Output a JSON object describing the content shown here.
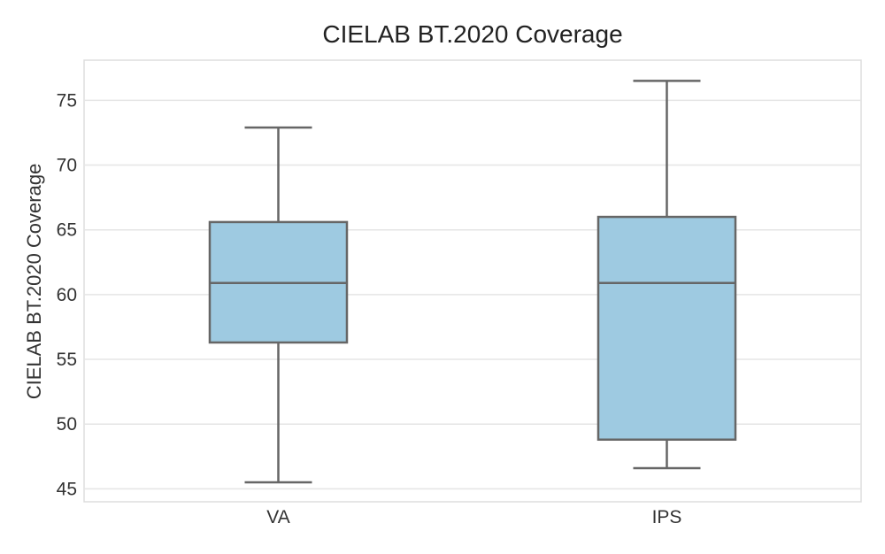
{
  "chart_data": {
    "type": "box",
    "title": "CIELAB BT.2020 Coverage",
    "xlabel": "",
    "ylabel": "CIELAB BT.2020 Coverage",
    "ylim": [
      44.0,
      78.1
    ],
    "yticks": [
      45,
      50,
      55,
      60,
      65,
      70,
      75
    ],
    "grid": true,
    "categories": [
      "VA",
      "IPS"
    ],
    "boxes": [
      {
        "category": "VA",
        "whisker_low": 45.5,
        "q1": 56.3,
        "median": 60.9,
        "q3": 65.6,
        "whisker_high": 72.9
      },
      {
        "category": "IPS",
        "whisker_low": 46.6,
        "q1": 48.8,
        "median": 60.9,
        "q3": 66.0,
        "whisker_high": 76.5
      }
    ],
    "colors": {
      "box_fill": "#9ecae1",
      "box_edge": "#666666",
      "grid": "#e5e5e5"
    }
  }
}
